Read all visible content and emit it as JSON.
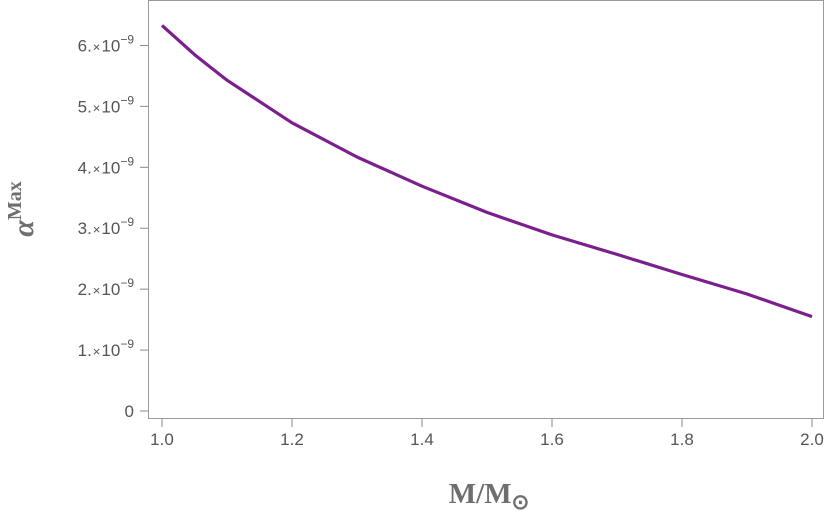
{
  "chart_data": {
    "type": "line",
    "xlabel": "M/M",
    "xlabel_sub": "⊙",
    "ylabel": "α",
    "ylabel_sup": "Max",
    "xlim": [
      1.0,
      2.0
    ],
    "ylim": [
      0,
      6.5e-09
    ],
    "x_ticks": [
      1.0,
      1.2,
      1.4,
      1.6,
      1.8,
      2.0
    ],
    "x_tick_labels": [
      "1.0",
      "1.2",
      "1.4",
      "1.6",
      "1.8",
      "2.0"
    ],
    "y_ticks": [
      0,
      1e-09,
      2e-09,
      3e-09,
      4e-09,
      5e-09,
      6e-09
    ],
    "y_tick_labels": [
      {
        "mantissa": "0",
        "times": "",
        "base": "",
        "exp": ""
      },
      {
        "mantissa": "1.",
        "times": "×",
        "base": "10",
        "exp": "−9"
      },
      {
        "mantissa": "2.",
        "times": "×",
        "base": "10",
        "exp": "−9"
      },
      {
        "mantissa": "3.",
        "times": "×",
        "base": "10",
        "exp": "−9"
      },
      {
        "mantissa": "4.",
        "times": "×",
        "base": "10",
        "exp": "−9"
      },
      {
        "mantissa": "5.",
        "times": "×",
        "base": "10",
        "exp": "−9"
      },
      {
        "mantissa": "6.",
        "times": "×",
        "base": "10",
        "exp": "−9"
      }
    ],
    "grid": false,
    "series": [
      {
        "color": "#7b1f8e",
        "x": [
          1.0,
          1.05,
          1.1,
          1.2,
          1.3,
          1.4,
          1.5,
          1.6,
          1.7,
          1.8,
          1.9,
          2.0
        ],
        "y": [
          6.33e-09,
          5.85e-09,
          5.43e-09,
          4.73e-09,
          4.17e-09,
          3.69e-09,
          3.26e-09,
          2.89e-09,
          2.57e-09,
          2.24e-09,
          1.92e-09,
          1.55e-09
        ]
      }
    ]
  }
}
